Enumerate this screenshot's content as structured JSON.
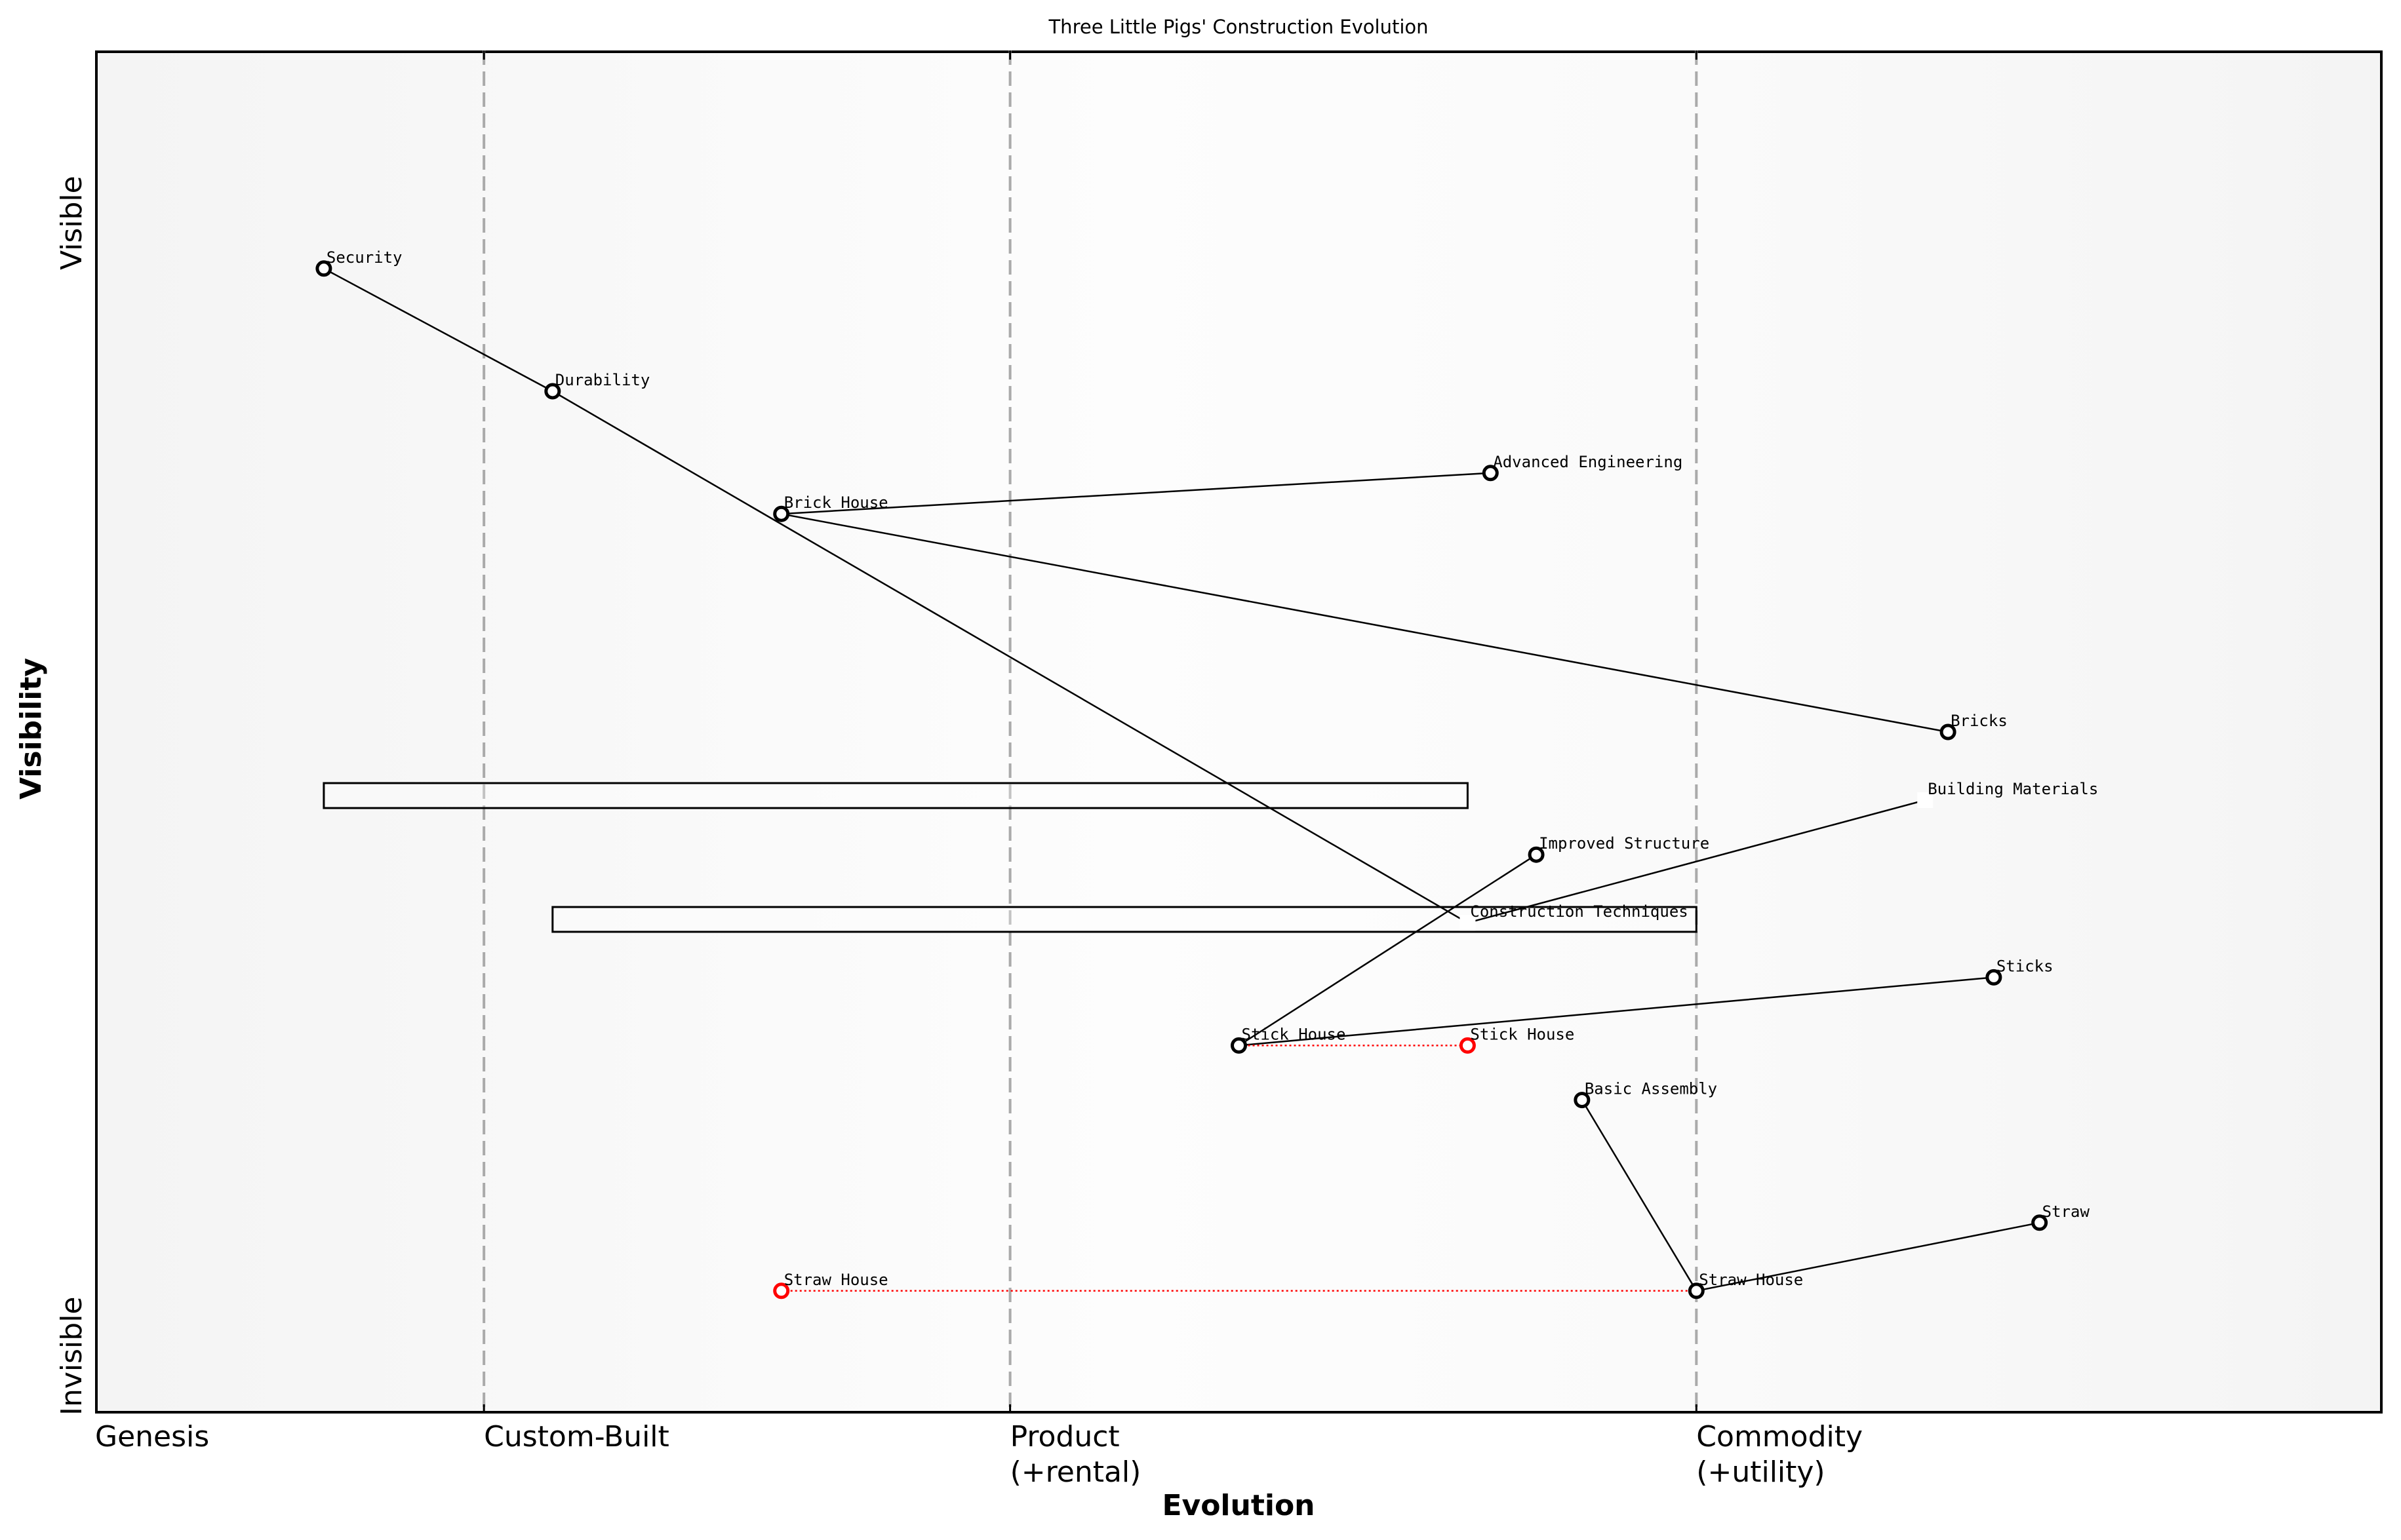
{
  "title": "Three Little Pigs' Construction Evolution",
  "x_axis": {
    "title": "Evolution",
    "stages": [
      {
        "label": "Genesis",
        "pos": 0.0
      },
      {
        "label": "Custom-Built",
        "pos": 0.17
      },
      {
        "label": "Product\n(+rental)",
        "pos": 0.4
      },
      {
        "label": "Commodity\n(+utility)",
        "pos": 0.7
      }
    ]
  },
  "y_axis": {
    "title": "Visibility",
    "top_label": "Visible",
    "bottom_label": "Invisible"
  },
  "colors": {
    "line": "#000000",
    "evolve": "#ff0000",
    "stage_line": "#aaaaaa",
    "node_fill": "#ffffff"
  },
  "chart_data": {
    "type": "scatter",
    "title": "Three Little Pigs' Construction Evolution",
    "xlabel": "Evolution",
    "ylabel": "Visibility",
    "xlim": [
      0,
      1
    ],
    "ylim": [
      0,
      1
    ],
    "grid": false,
    "components": [
      {
        "id": "security",
        "name": "Security",
        "evolution": 0.1,
        "visibility": 0.84,
        "marker": "circle"
      },
      {
        "id": "durability",
        "name": "Durability",
        "evolution": 0.2,
        "visibility": 0.75,
        "marker": "circle"
      },
      {
        "id": "brick_house",
        "name": "Brick House",
        "evolution": 0.3,
        "visibility": 0.66,
        "marker": "circle"
      },
      {
        "id": "advanced_engineering",
        "name": "Advanced Engineering",
        "evolution": 0.61,
        "visibility": 0.69,
        "marker": "circle"
      },
      {
        "id": "bricks",
        "name": "Bricks",
        "evolution": 0.81,
        "visibility": 0.5,
        "marker": "circle"
      },
      {
        "id": "building_materials",
        "name": "Building Materials",
        "evolution": 0.8,
        "visibility": 0.45,
        "marker": "square"
      },
      {
        "id": "improved_structure",
        "name": "Improved Structure",
        "evolution": 0.63,
        "visibility": 0.41,
        "marker": "circle"
      },
      {
        "id": "construction_techniques",
        "name": "Construction Techniques",
        "evolution": 0.6,
        "visibility": 0.36,
        "marker": "square"
      },
      {
        "id": "sticks",
        "name": "Sticks",
        "evolution": 0.83,
        "visibility": 0.32,
        "marker": "circle"
      },
      {
        "id": "stick_house",
        "name": "Stick House",
        "evolution": 0.5,
        "visibility": 0.27,
        "marker": "circle"
      },
      {
        "id": "stick_house_evolved",
        "name": "Stick House",
        "evolution": 0.6,
        "visibility": 0.27,
        "marker": "circle",
        "evolved": true
      },
      {
        "id": "basic_assembly",
        "name": "Basic Assembly",
        "evolution": 0.65,
        "visibility": 0.23,
        "marker": "circle"
      },
      {
        "id": "straw",
        "name": "Straw",
        "evolution": 0.85,
        "visibility": 0.14,
        "marker": "circle"
      },
      {
        "id": "straw_house",
        "name": "Straw House",
        "evolution": 0.7,
        "visibility": 0.09,
        "marker": "circle"
      },
      {
        "id": "straw_house_evolved",
        "name": "Straw House",
        "evolution": 0.3,
        "visibility": 0.09,
        "marker": "circle",
        "evolved": true
      }
    ],
    "links": [
      [
        "security",
        "durability"
      ],
      [
        "durability",
        "construction_techniques"
      ],
      [
        "brick_house",
        "advanced_engineering"
      ],
      [
        "brick_house",
        "bricks"
      ],
      [
        "stick_house",
        "improved_structure"
      ],
      [
        "stick_house",
        "sticks"
      ],
      [
        "construction_techniques",
        "building_materials"
      ],
      [
        "basic_assembly",
        "straw_house"
      ],
      [
        "straw_house",
        "straw"
      ]
    ],
    "evolutions": [
      [
        "stick_house",
        "stick_house_evolved"
      ],
      [
        "straw_house_evolved",
        "straw_house"
      ]
    ],
    "pipelines": [
      {
        "visibility_top": 0.4625,
        "visibility_bottom": 0.4442,
        "evolution_start": 0.1,
        "evolution_end": 0.6
      },
      {
        "visibility_top": 0.3716,
        "visibility_bottom": 0.3534,
        "evolution_start": 0.2,
        "evolution_end": 0.7
      }
    ]
  }
}
